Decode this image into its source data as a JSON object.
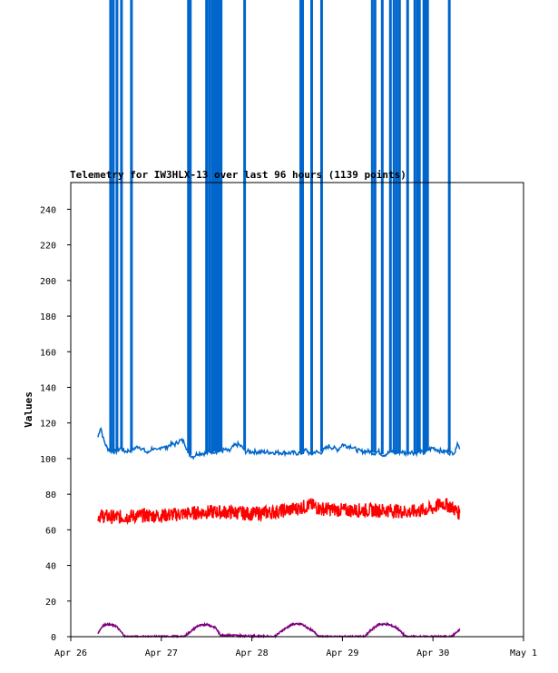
{
  "chart_data": {
    "type": "line",
    "title": "Telemetry for IW3HLX-13 over last 96 hours (1139 points)",
    "ylabel": "Values",
    "xlabel": "",
    "ylim": [
      0,
      255
    ],
    "xlim": [
      0,
      5
    ],
    "yticks": [
      0,
      20,
      40,
      60,
      80,
      100,
      120,
      140,
      160,
      180,
      200,
      220,
      240
    ],
    "x_tick_labels": [
      "Apr 26",
      "Apr 27",
      "Apr 28",
      "Apr 29",
      "Apr 30",
      "May 1"
    ],
    "x_unit": "days since Apr 26 00:00",
    "grid": false,
    "series": [
      {
        "color": "#0066cc",
        "baseline": [
          [
            0.3,
            112
          ],
          [
            0.33,
            118
          ],
          [
            0.36,
            111
          ],
          [
            0.4,
            106
          ],
          [
            0.45,
            104
          ],
          [
            0.5,
            104
          ],
          [
            0.55,
            106
          ],
          [
            0.6,
            104
          ],
          [
            0.68,
            105
          ],
          [
            0.75,
            107
          ],
          [
            0.8,
            105
          ],
          [
            0.85,
            103
          ],
          [
            0.9,
            106
          ],
          [
            0.95,
            104
          ],
          [
            1.0,
            107
          ],
          [
            1.05,
            106
          ],
          [
            1.1,
            108
          ],
          [
            1.15,
            108
          ],
          [
            1.2,
            110
          ],
          [
            1.25,
            110
          ],
          [
            1.3,
            103
          ],
          [
            1.35,
            101
          ],
          [
            1.4,
            103
          ],
          [
            1.45,
            103
          ],
          [
            1.5,
            103
          ],
          [
            1.55,
            104
          ],
          [
            1.6,
            104
          ],
          [
            1.65,
            104
          ],
          [
            1.7,
            105
          ],
          [
            1.75,
            104
          ],
          [
            1.8,
            107
          ],
          [
            1.85,
            108
          ],
          [
            1.9,
            106
          ],
          [
            1.93,
            104
          ],
          [
            2.55,
            103
          ],
          [
            2.6,
            105
          ],
          [
            2.65,
            102
          ],
          [
            2.7,
            104
          ],
          [
            2.75,
            103
          ],
          [
            2.8,
            105
          ],
          [
            2.85,
            107
          ],
          [
            2.9,
            106
          ],
          [
            2.95,
            105
          ],
          [
            3.0,
            108
          ],
          [
            3.05,
            107
          ],
          [
            3.1,
            107
          ],
          [
            3.15,
            105
          ],
          [
            3.2,
            104
          ],
          [
            3.25,
            104
          ],
          [
            3.3,
            104
          ],
          [
            3.35,
            103
          ],
          [
            3.4,
            104
          ],
          [
            3.45,
            102
          ],
          [
            3.5,
            103
          ],
          [
            3.55,
            104
          ],
          [
            3.6,
            103
          ],
          [
            3.65,
            104
          ],
          [
            3.7,
            103
          ],
          [
            3.75,
            104
          ],
          [
            3.8,
            103
          ],
          [
            3.85,
            104
          ],
          [
            3.9,
            103
          ],
          [
            3.95,
            105
          ],
          [
            4.0,
            106
          ],
          [
            4.05,
            105
          ],
          [
            4.1,
            104
          ],
          [
            4.15,
            104
          ],
          [
            4.2,
            103
          ],
          [
            4.25,
            104
          ],
          [
            4.27,
            110
          ],
          [
            4.3,
            104
          ]
        ],
        "spike_x": [
          0.44,
          0.47,
          0.51,
          0.56,
          0.67,
          1.3,
          1.32,
          1.5,
          1.53,
          1.56,
          1.58,
          1.6,
          1.62,
          1.64,
          1.66,
          1.92,
          2.54,
          2.56,
          2.66,
          2.77,
          3.33,
          3.36,
          3.44,
          3.53,
          3.57,
          3.6,
          3.63,
          3.72,
          3.8,
          3.83,
          3.85,
          3.9,
          3.92,
          3.94,
          4.18
        ],
        "spike_peak": 255
      },
      {
        "color": "#ff0000",
        "baseline": [
          [
            0.3,
            68
          ],
          [
            0.5,
            67
          ],
          [
            0.75,
            68
          ],
          [
            1.0,
            68
          ],
          [
            1.25,
            69
          ],
          [
            1.5,
            70
          ],
          [
            1.75,
            70
          ],
          [
            2.0,
            69
          ],
          [
            2.25,
            70
          ],
          [
            2.5,
            72
          ],
          [
            2.65,
            74
          ],
          [
            2.75,
            72
          ],
          [
            3.0,
            71
          ],
          [
            3.25,
            71
          ],
          [
            3.5,
            71
          ],
          [
            3.75,
            70
          ],
          [
            4.0,
            72
          ],
          [
            4.1,
            75
          ],
          [
            4.2,
            73
          ],
          [
            4.3,
            69
          ]
        ],
        "noise": 8
      },
      {
        "color": "#800080",
        "baseline": [
          [
            0.3,
            2
          ],
          [
            0.35,
            6
          ],
          [
            0.4,
            7
          ],
          [
            0.5,
            6
          ],
          [
            0.55,
            3
          ],
          [
            0.6,
            0
          ],
          [
            1.25,
            0
          ],
          [
            1.3,
            2
          ],
          [
            1.4,
            6
          ],
          [
            1.5,
            7
          ],
          [
            1.6,
            5
          ],
          [
            1.65,
            1
          ],
          [
            2.2,
            0
          ],
          [
            2.25,
            0
          ],
          [
            2.35,
            4
          ],
          [
            2.45,
            7
          ],
          [
            2.55,
            7
          ],
          [
            2.65,
            4
          ],
          [
            2.75,
            0
          ],
          [
            3.25,
            0
          ],
          [
            3.3,
            3
          ],
          [
            3.4,
            7
          ],
          [
            3.5,
            7
          ],
          [
            3.6,
            5
          ],
          [
            3.7,
            0
          ],
          [
            4.2,
            0
          ],
          [
            4.25,
            2
          ],
          [
            4.3,
            4
          ]
        ],
        "noise": 1
      }
    ]
  }
}
